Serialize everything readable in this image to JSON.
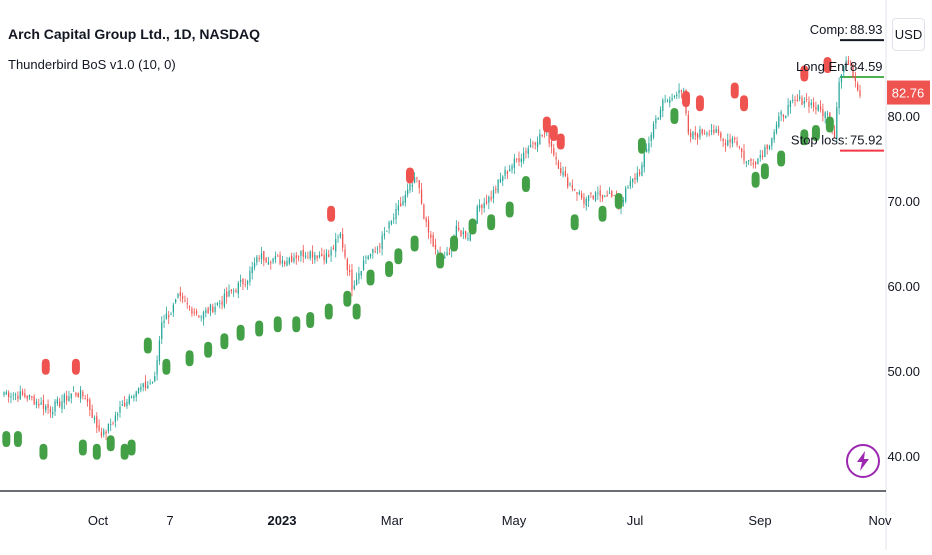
{
  "header": {
    "symbol": "Arch Capital Group Ltd., 1D, NASDAQ",
    "indicator": "Thunderbird BoS v1.0 (10, 0)",
    "currency": "USD"
  },
  "chart_data": {
    "type": "candlestick",
    "ylim": [
      36,
      94
    ],
    "y_ticks": [
      "40.00",
      "50.00",
      "60.00",
      "70.00",
      "80.00"
    ],
    "x_ticks": [
      "Oct",
      "7",
      "2023",
      "Mar",
      "May",
      "Jul",
      "Sep",
      "Nov"
    ],
    "last_price": "82.76",
    "levels": [
      {
        "name": "Comp",
        "label": "Comp:",
        "value": 88.93,
        "display": "88.93",
        "color": "#131722"
      },
      {
        "name": "Long Entry",
        "label": "Long Ent",
        "value": 84.59,
        "display": "84.59",
        "color": "#4caf50"
      },
      {
        "name": "Stop loss",
        "label": "Stop loss:",
        "value": 75.92,
        "display": "75.92",
        "color": "#f23645"
      }
    ],
    "close_anchors": [
      [
        0,
        47.5
      ],
      [
        10,
        47.0
      ],
      [
        20,
        45.5
      ],
      [
        30,
        47.5
      ],
      [
        35,
        47.0
      ],
      [
        40,
        43.5
      ],
      [
        43,
        42.5
      ],
      [
        50,
        45.5
      ],
      [
        55,
        47.5
      ],
      [
        60,
        48.0
      ],
      [
        65,
        49.0
      ],
      [
        68,
        56.0
      ],
      [
        72,
        57.0
      ],
      [
        75,
        58.5
      ],
      [
        85,
        56.5
      ],
      [
        95,
        58.5
      ],
      [
        105,
        61.0
      ],
      [
        110,
        63.5
      ],
      [
        120,
        63.0
      ],
      [
        130,
        64.0
      ],
      [
        140,
        63.5
      ],
      [
        145,
        66.0
      ],
      [
        150,
        60.0
      ],
      [
        156,
        63.5
      ],
      [
        160,
        64.0
      ],
      [
        165,
        66.5
      ],
      [
        170,
        69.0
      ],
      [
        175,
        71.5
      ],
      [
        178,
        72.5
      ],
      [
        182,
        67.0
      ],
      [
        186,
        64.0
      ],
      [
        190,
        63.0
      ],
      [
        195,
        66.5
      ],
      [
        200,
        66.0
      ],
      [
        205,
        69.5
      ],
      [
        210,
        70.5
      ],
      [
        215,
        73.0
      ],
      [
        220,
        74.5
      ],
      [
        225,
        76.0
      ],
      [
        230,
        77.5
      ],
      [
        234,
        78.0
      ],
      [
        238,
        75.0
      ],
      [
        242,
        72.5
      ],
      [
        246,
        71.5
      ],
      [
        250,
        70.0
      ],
      [
        255,
        70.5
      ],
      [
        260,
        71.0
      ],
      [
        265,
        69.5
      ],
      [
        270,
        72.0
      ],
      [
        275,
        74.0
      ],
      [
        280,
        79.0
      ],
      [
        284,
        81.5
      ],
      [
        288,
        82.0
      ],
      [
        291,
        83.5
      ],
      [
        293,
        82.5
      ],
      [
        295,
        77.5
      ],
      [
        300,
        78.0
      ],
      [
        305,
        78.5
      ],
      [
        310,
        77.0
      ],
      [
        315,
        77.5
      ],
      [
        320,
        74.5
      ],
      [
        325,
        75.0
      ],
      [
        330,
        77.0
      ],
      [
        335,
        80.0
      ],
      [
        340,
        81.5
      ],
      [
        345,
        82.0
      ],
      [
        350,
        81.0
      ],
      [
        355,
        80.0
      ],
      [
        358,
        78.0
      ],
      [
        360,
        84.5
      ],
      [
        363,
        86.5
      ],
      [
        366,
        85.0
      ],
      [
        369,
        82.8
      ]
    ],
    "arrows_up": [
      [
        1,
        42.0
      ],
      [
        6,
        42.0
      ],
      [
        17,
        40.5
      ],
      [
        34,
        41.0
      ],
      [
        40,
        40.5
      ],
      [
        46,
        41.5
      ],
      [
        52,
        40.5
      ],
      [
        55,
        41.0
      ],
      [
        62,
        53.0
      ],
      [
        70,
        50.5
      ],
      [
        80,
        51.5
      ],
      [
        88,
        52.5
      ],
      [
        95,
        53.5
      ],
      [
        102,
        54.5
      ],
      [
        110,
        55.0
      ],
      [
        118,
        55.5
      ],
      [
        126,
        55.5
      ],
      [
        132,
        56.0
      ],
      [
        140,
        57.0
      ],
      [
        148,
        58.5
      ],
      [
        152,
        57.0
      ],
      [
        158,
        61.0
      ],
      [
        166,
        62.0
      ],
      [
        170,
        63.5
      ],
      [
        177,
        65.0
      ],
      [
        188,
        63.0
      ],
      [
        194,
        65.0
      ],
      [
        202,
        67.0
      ],
      [
        210,
        67.5
      ],
      [
        218,
        69.0
      ],
      [
        225,
        72.0
      ],
      [
        246,
        67.5
      ],
      [
        258,
        68.5
      ],
      [
        265,
        70.0
      ],
      [
        275,
        76.5
      ],
      [
        289,
        80.0
      ],
      [
        324,
        72.5
      ],
      [
        328,
        73.5
      ],
      [
        335,
        75.0
      ],
      [
        345,
        77.5
      ],
      [
        350,
        78.0
      ],
      [
        356,
        79.0
      ]
    ],
    "arrows_down": [
      [
        18,
        50.5
      ],
      [
        31,
        50.5
      ],
      [
        141,
        68.5
      ],
      [
        175,
        73.0
      ],
      [
        234,
        79.0
      ],
      [
        237,
        78.0
      ],
      [
        240,
        77.0
      ],
      [
        294,
        82.0
      ],
      [
        300,
        81.5
      ],
      [
        315,
        83.0
      ],
      [
        319,
        81.5
      ],
      [
        345,
        85.0
      ],
      [
        355,
        86.0
      ]
    ],
    "colors": {
      "up": "#26a69a",
      "down": "#ef5350",
      "arrow_up": "#43a047",
      "arrow_down": "#ef5350",
      "badge": "#ef5350"
    }
  }
}
